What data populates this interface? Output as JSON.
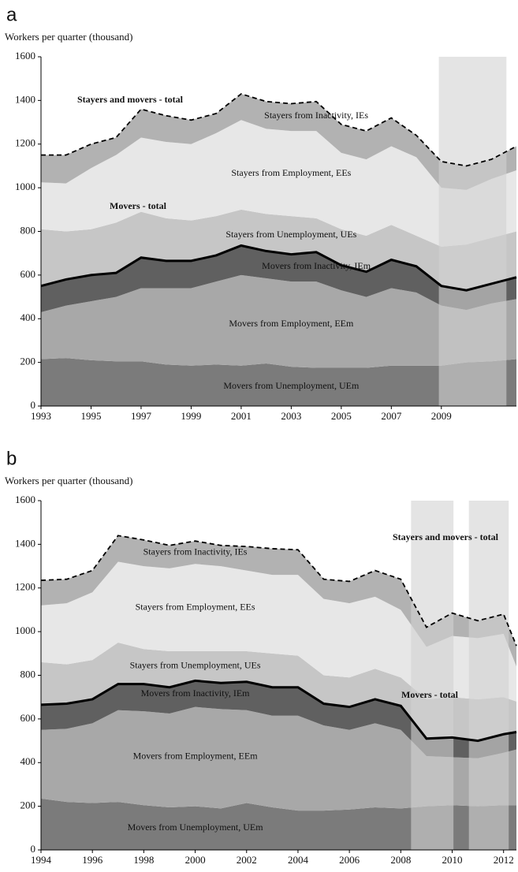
{
  "chart_data": [
    {
      "type": "stacked-area",
      "panel": "a",
      "ylabel": "Workers per quarter (thousand)",
      "x": [
        1993,
        1994,
        1995,
        1996,
        1997,
        1998,
        1999,
        2000,
        2001,
        2002,
        2003,
        2004,
        2005,
        2006,
        2007,
        2008,
        2009,
        2010,
        2011,
        2012
      ],
      "xlim": [
        1993,
        2012
      ],
      "xticks": [
        1993,
        1995,
        1997,
        1999,
        2001,
        2003,
        2005,
        2007,
        2009
      ],
      "ylim": [
        0,
        1600
      ],
      "yticks": [
        0,
        200,
        400,
        600,
        800,
        1000,
        1200,
        1400,
        1600
      ],
      "shaded": [
        [
          2008.9,
          2011.6
        ]
      ],
      "shade_color": "#d2d2d2",
      "series": [
        {
          "name": "Movers from Unemployment, UEm",
          "color": "#7b7b7b",
          "values": [
            215,
            220,
            210,
            205,
            205,
            190,
            185,
            190,
            185,
            195,
            180,
            175,
            175,
            175,
            185,
            185,
            185,
            200,
            205,
            215
          ]
        },
        {
          "name": "Movers from Employment, EEm",
          "color": "#a8a8a8",
          "values": [
            215,
            240,
            270,
            295,
            335,
            350,
            355,
            380,
            415,
            390,
            390,
            395,
            355,
            325,
            355,
            335,
            275,
            240,
            265,
            275
          ]
        },
        {
          "name": "Movers from Inactivity, IEm",
          "color": "#606060",
          "values": [
            120,
            120,
            120,
            110,
            140,
            125,
            125,
            120,
            135,
            125,
            125,
            135,
            115,
            115,
            130,
            120,
            90,
            90,
            90,
            100
          ],
          "top_line": "solid",
          "line_label": "Movers - total"
        },
        {
          "name": "Stayers from Unemployment, UEs",
          "color": "#c6c6c6",
          "values": [
            260,
            220,
            210,
            230,
            210,
            195,
            185,
            180,
            165,
            170,
            175,
            155,
            165,
            165,
            160,
            140,
            180,
            210,
            210,
            210
          ]
        },
        {
          "name": "Stayers from Employment, EEs",
          "color": "#e7e7e7",
          "values": [
            215,
            220,
            280,
            310,
            340,
            350,
            350,
            380,
            410,
            390,
            390,
            400,
            350,
            350,
            360,
            360,
            270,
            250,
            270,
            280
          ]
        },
        {
          "name": "Stayers from Inactivity, IEs",
          "color": "#b2b2b2",
          "values": [
            125,
            130,
            110,
            80,
            130,
            120,
            110,
            90,
            120,
            125,
            125,
            135,
            130,
            130,
            130,
            100,
            120,
            110,
            90,
            110
          ],
          "top_line": "dashed",
          "line_label": "Stayers and movers - total"
        }
      ]
    },
    {
      "type": "stacked-area",
      "panel": "b",
      "ylabel": "Workers per quarter (thousand)",
      "x": [
        1994,
        1995,
        1996,
        1997,
        1998,
        1999,
        2000,
        2001,
        2002,
        2003,
        2004,
        2005,
        2006,
        2007,
        2008,
        2009,
        2010,
        2011,
        2012,
        2012.5
      ],
      "xlim": [
        1994,
        2012.5
      ],
      "xticks": [
        1994,
        1996,
        1998,
        2000,
        2002,
        2004,
        2006,
        2008,
        2010,
        2012
      ],
      "ylim": [
        0,
        1600
      ],
      "yticks": [
        0,
        200,
        400,
        600,
        800,
        1000,
        1200,
        1400,
        1600
      ],
      "shaded": [
        [
          2008.4,
          2010.05
        ],
        [
          2010.65,
          2012.2
        ]
      ],
      "shade_color": "#d2d2d2",
      "series": [
        {
          "name": "Movers from Unemployment, UEm",
          "color": "#7b7b7b",
          "values": [
            235,
            220,
            215,
            220,
            205,
            195,
            200,
            190,
            215,
            195,
            180,
            180,
            185,
            195,
            190,
            200,
            205,
            200,
            205,
            205
          ]
        },
        {
          "name": "Movers from Employment, EEm",
          "color": "#a8a8a8",
          "values": [
            315,
            335,
            365,
            420,
            430,
            430,
            455,
            455,
            425,
            420,
            435,
            390,
            365,
            385,
            360,
            230,
            220,
            220,
            240,
            255
          ]
        },
        {
          "name": "Movers from Inactivity, IEm",
          "color": "#606060",
          "values": [
            115,
            115,
            110,
            120,
            125,
            120,
            120,
            120,
            130,
            130,
            130,
            100,
            105,
            110,
            110,
            80,
            90,
            80,
            85,
            80
          ],
          "top_line": "solid",
          "line_label": "Movers - total"
        },
        {
          "name": "Stayers from Unemployment, UEs",
          "color": "#c6c6c6",
          "values": [
            195,
            180,
            180,
            190,
            160,
            165,
            135,
            145,
            140,
            155,
            145,
            130,
            135,
            140,
            130,
            180,
            185,
            190,
            170,
            140
          ]
        },
        {
          "name": "Stayers from Employment, EEs",
          "color": "#e7e7e7",
          "values": [
            260,
            280,
            310,
            370,
            380,
            380,
            400,
            390,
            370,
            360,
            370,
            350,
            340,
            330,
            310,
            240,
            280,
            280,
            290,
            160
          ]
        },
        {
          "name": "Stayers from Inactivity, IEs",
          "color": "#b2b2b2",
          "values": [
            115,
            110,
            100,
            120,
            120,
            105,
            105,
            95,
            110,
            120,
            115,
            90,
            100,
            120,
            140,
            90,
            105,
            80,
            90,
            95
          ],
          "top_line": "dashed",
          "line_label": "Stayers and movers - total"
        }
      ]
    }
  ]
}
